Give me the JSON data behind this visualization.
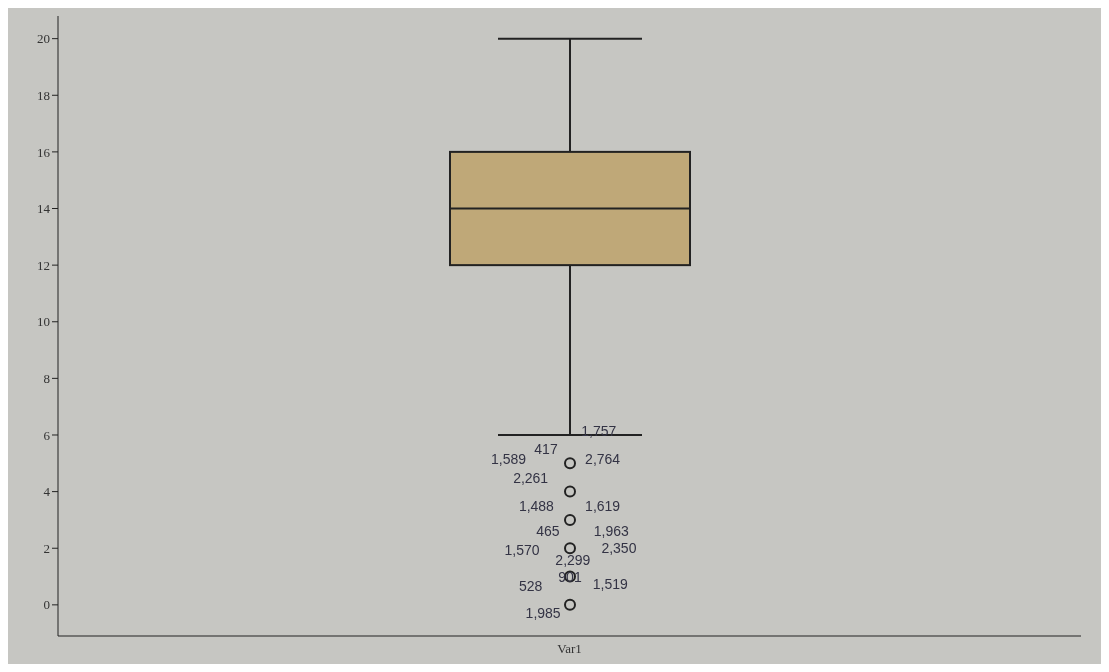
{
  "chart_data": {
    "type": "box",
    "categories": [
      "Var1"
    ],
    "color": "#bfa878",
    "boxes": [
      {
        "low": 6,
        "q1": 12,
        "median": 14,
        "q3": 16,
        "high": 20,
        "outliers": [
          5,
          4,
          3,
          2,
          1,
          0
        ]
      }
    ],
    "ylim": [
      -1.1,
      20.8
    ],
    "yticks": [
      0,
      2,
      4,
      6,
      8,
      10,
      12,
      14,
      16,
      18,
      20
    ],
    "grid": false,
    "annotations": [
      "1,757",
      "1,589",
      "2,764",
      "417",
      "2,261",
      "1,488",
      "1,619",
      "465",
      "1,963",
      "1,570",
      "2,350",
      "528",
      "1,519",
      "901",
      "2,299",
      "1,985"
    ]
  }
}
